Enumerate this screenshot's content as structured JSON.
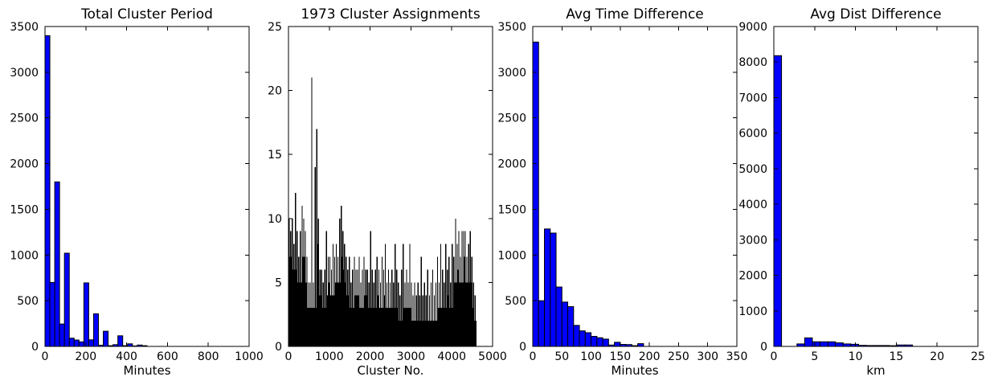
{
  "figure": {
    "background": "#ffffff",
    "text_color": "#000000",
    "spine_color": "#000000",
    "bar_fill_color": "#0000ff",
    "bar_edge_color": "#000000",
    "dense_bar_color": "#000000"
  },
  "chart_data": [
    {
      "type": "bar",
      "style": "histogram",
      "title": "Total Cluster Period",
      "xlabel": "Minutes",
      "ylabel": "",
      "xlim": [
        0,
        1000
      ],
      "ylim": [
        0,
        3500
      ],
      "xticks": [
        0,
        200,
        400,
        600,
        800,
        1000
      ],
      "yticks": [
        0,
        500,
        1000,
        1500,
        2000,
        2500,
        3000,
        3500
      ],
      "grid": false,
      "legend": "none",
      "bin_start": 0,
      "bin_width": 23.8,
      "values": [
        3400,
        700,
        1800,
        245,
        1020,
        90,
        70,
        50,
        695,
        72,
        357,
        13,
        166,
        8,
        19,
        116,
        8,
        28,
        5,
        15,
        8
      ],
      "bar_color": "#0000ff"
    },
    {
      "type": "bar",
      "style": "dense",
      "title": "1973 Cluster Assignments",
      "xlabel": "Cluster No.",
      "ylabel": "",
      "xlim": [
        0,
        5000
      ],
      "ylim": [
        0,
        25
      ],
      "xticks": [
        0,
        1000,
        2000,
        3000,
        4000,
        5000
      ],
      "yticks": [
        0,
        5,
        10,
        15,
        20,
        25
      ],
      "grid": false,
      "legend": "none",
      "bin_start": 0,
      "bin_width": 40,
      "values": [
        10,
        9,
        10,
        8,
        12,
        9,
        7,
        9,
        11,
        10,
        9,
        7,
        5,
        5,
        21,
        5,
        14,
        17,
        10,
        6,
        6,
        5,
        6,
        9,
        7,
        7,
        6,
        8,
        7,
        8,
        7,
        10,
        11,
        9,
        8,
        7,
        6,
        7,
        5,
        6,
        7,
        6,
        6,
        7,
        5,
        6,
        7,
        6,
        6,
        5,
        9,
        6,
        5,
        6,
        7,
        6,
        5,
        7,
        6,
        8,
        5,
        6,
        5,
        6,
        5,
        8,
        6,
        5,
        4,
        6,
        8,
        5,
        6,
        5,
        8,
        5,
        4,
        5,
        4,
        5,
        4,
        7,
        4,
        5,
        4,
        6,
        4,
        5,
        6,
        4,
        5,
        7,
        5,
        8,
        6,
        5,
        8,
        6,
        7,
        5,
        8,
        7,
        10,
        8,
        9,
        7,
        9,
        9,
        9,
        7,
        8,
        9,
        7,
        5,
        4
      ],
      "bar_color": "#000000"
    },
    {
      "type": "bar",
      "style": "histogram",
      "title": "Avg Time Difference",
      "xlabel": "Minutes",
      "ylabel": "",
      "xlim": [
        0,
        350
      ],
      "ylim": [
        0,
        3500
      ],
      "xticks": [
        0,
        50,
        100,
        150,
        200,
        250,
        300,
        350
      ],
      "yticks": [
        0,
        500,
        1000,
        1500,
        2000,
        2500,
        3000,
        3500
      ],
      "grid": false,
      "legend": "none",
      "bin_start": 0,
      "bin_width": 10,
      "values": [
        3330,
        500,
        1285,
        1240,
        650,
        485,
        435,
        230,
        170,
        150,
        110,
        95,
        80,
        15,
        45,
        22,
        20,
        8,
        30
      ],
      "bar_color": "#0000ff"
    },
    {
      "type": "bar",
      "style": "histogram",
      "title": "Avg Dist Difference",
      "xlabel": "km",
      "ylabel": "",
      "xlim": [
        0,
        25
      ],
      "ylim": [
        0,
        9000
      ],
      "xticks": [
        0,
        5,
        10,
        15,
        20,
        25
      ],
      "yticks": [
        0,
        1000,
        2000,
        3000,
        4000,
        5000,
        6000,
        7000,
        8000,
        9000
      ],
      "grid": false,
      "legend": "none",
      "bin_start": 0,
      "bin_width": 0.944,
      "values": [
        8180,
        0,
        0,
        70,
        240,
        130,
        130,
        130,
        100,
        70,
        60,
        30,
        25,
        25,
        25,
        20,
        40,
        40
      ],
      "bar_color": "#0000ff"
    }
  ]
}
